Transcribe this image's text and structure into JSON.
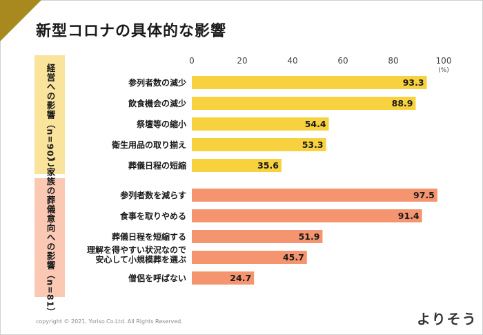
{
  "title": "新型コロナの具体的な影響",
  "footer": "copyright © 2021,  Yoriso.Co.Ltd. All Rights Reserved.",
  "logo": "よりそう",
  "colors": {
    "group1": "#f7d13e",
    "group2": "#f5956f",
    "corner": "#a7891f"
  },
  "chart_data": {
    "type": "bar",
    "orientation": "horizontal",
    "xlim": [
      0,
      100
    ],
    "x_ticks": [
      "0",
      "20",
      "40",
      "60",
      "80",
      "100"
    ],
    "unit": "(%)",
    "groups": [
      {
        "label": "経営への影響（n=90）",
        "color": "#f7d13e",
        "categories": [
          "参列者数の減少",
          "飲食機会の減少",
          "祭壇等の縮小",
          "衛生用品の取り揃え",
          "葬儀日程の短縮"
        ],
        "values": [
          93.3,
          88.9,
          54.4,
          53.3,
          35.6
        ]
      },
      {
        "label": "ご家族の葬儀意向への影響（n=81）",
        "color": "#f5956f",
        "categories": [
          "参列者数を減らす",
          "食事を取りやめる",
          "葬儀日程を短縮する",
          "理解を得やすい状況なので\n安心して小規模葬を選ぶ",
          "僧侶を呼ばない"
        ],
        "values": [
          97.5,
          91.4,
          51.9,
          45.7,
          24.7
        ]
      }
    ]
  }
}
